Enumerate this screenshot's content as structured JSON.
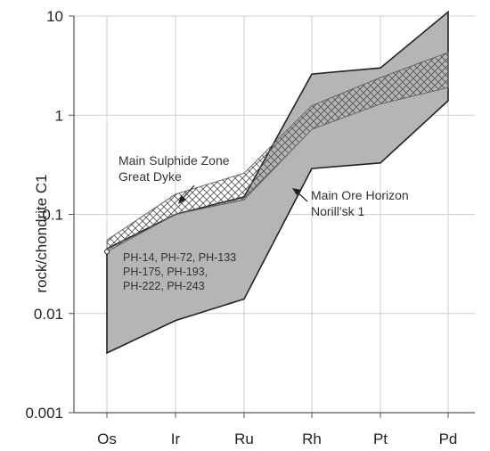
{
  "chart_data": {
    "type": "area",
    "title": "",
    "xlabel": "",
    "ylabel": "rock/chondrite C1",
    "y_scale": "log",
    "ylim": [
      0.001,
      10
    ],
    "y_ticks": [
      {
        "value": 0.001,
        "label": "0.001"
      },
      {
        "value": 0.01,
        "label": "0.01"
      },
      {
        "value": 0.1,
        "label": "0.1"
      },
      {
        "value": 1,
        "label": "1"
      },
      {
        "value": 10,
        "label": "10"
      }
    ],
    "categories": [
      "Os",
      "Ir",
      "Ru",
      "Rh",
      "Pt",
      "Pd"
    ],
    "grid": true,
    "series": [
      {
        "role": "grey-field",
        "color": "#b5b5b5",
        "upper": [
          0.045,
          0.1,
          0.15,
          2.6,
          3.0,
          11
        ],
        "lower": [
          0.004,
          0.0085,
          0.014,
          0.29,
          0.33,
          1.4
        ]
      },
      {
        "name": "Main Sulphide Zone Great Dyke",
        "role": "hatched-band",
        "upper": [
          0.055,
          0.16,
          0.26,
          1.25,
          2.4,
          4.3
        ],
        "lower": [
          0.042,
          0.1,
          0.14,
          0.72,
          1.3,
          1.9
        ]
      }
    ],
    "annotations": [
      {
        "id": "msz",
        "lines": [
          "Main Sulphide Zone",
          "Great Dyke"
        ]
      },
      {
        "id": "moh",
        "lines": [
          "Main Ore Horizon",
          "Norill'sk 1"
        ]
      },
      {
        "id": "samples",
        "lines": [
          "PH-14, PH-72, PH-133",
          "PH-175, PH-193,",
          "PH-222, PH-243"
        ]
      }
    ]
  }
}
